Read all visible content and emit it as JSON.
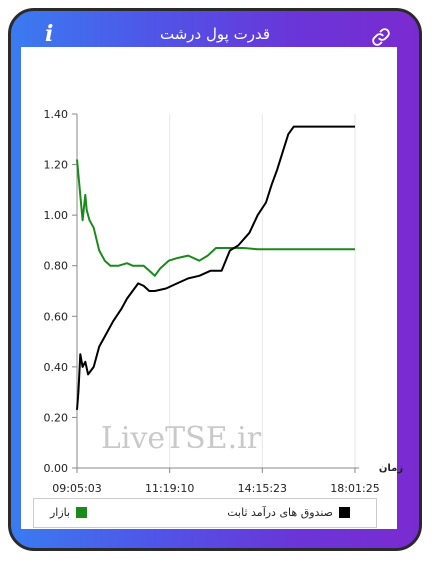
{
  "header": {
    "title": "قدرت پول درشت",
    "info_icon": "i",
    "link_icon": "link-icon"
  },
  "chart_data": {
    "type": "line",
    "xlabel": "زمان",
    "ylim": [
      0,
      1.4
    ],
    "yticks": [
      "0.00",
      "0.20",
      "0.40",
      "0.60",
      "0.80",
      "1.00",
      "1.20",
      "1.40"
    ],
    "xticks": [
      "09:05:03",
      "11:19:10",
      "14:15:23",
      "18:01:25"
    ],
    "watermark": "LiveTSE.ir",
    "grid": "vertical",
    "legend_position": "bottom",
    "colors": {
      "market": "#1a8a1a",
      "funds": "#000000"
    },
    "series": [
      {
        "name": "بازار",
        "color": "#1a8a1a",
        "points": [
          [
            0,
            1.22
          ],
          [
            0.01,
            1.1
          ],
          [
            0.02,
            0.98
          ],
          [
            0.03,
            1.08
          ],
          [
            0.035,
            1.02
          ],
          [
            0.045,
            0.98
          ],
          [
            0.06,
            0.95
          ],
          [
            0.08,
            0.86
          ],
          [
            0.1,
            0.82
          ],
          [
            0.12,
            0.8
          ],
          [
            0.15,
            0.8
          ],
          [
            0.18,
            0.81
          ],
          [
            0.2,
            0.8
          ],
          [
            0.24,
            0.8
          ],
          [
            0.26,
            0.78
          ],
          [
            0.28,
            0.76
          ],
          [
            0.3,
            0.79
          ],
          [
            0.33,
            0.82
          ],
          [
            0.36,
            0.83
          ],
          [
            0.4,
            0.84
          ],
          [
            0.44,
            0.82
          ],
          [
            0.47,
            0.84
          ],
          [
            0.5,
            0.87
          ],
          [
            0.55,
            0.87
          ],
          [
            0.6,
            0.87
          ],
          [
            0.65,
            0.865
          ],
          [
            0.7,
            0.865
          ],
          [
            0.75,
            0.865
          ],
          [
            0.8,
            0.865
          ],
          [
            0.85,
            0.865
          ],
          [
            0.9,
            0.865
          ],
          [
            0.95,
            0.865
          ],
          [
            1,
            0.865
          ]
        ]
      },
      {
        "name": "صندوق های درآمد ثابت",
        "color": "#000000",
        "points": [
          [
            0,
            0.23
          ],
          [
            0.005,
            0.3
          ],
          [
            0.012,
            0.45
          ],
          [
            0.02,
            0.4
          ],
          [
            0.03,
            0.42
          ],
          [
            0.04,
            0.37
          ],
          [
            0.06,
            0.4
          ],
          [
            0.08,
            0.48
          ],
          [
            0.1,
            0.52
          ],
          [
            0.13,
            0.58
          ],
          [
            0.16,
            0.63
          ],
          [
            0.18,
            0.67
          ],
          [
            0.2,
            0.7
          ],
          [
            0.22,
            0.73
          ],
          [
            0.24,
            0.72
          ],
          [
            0.26,
            0.7
          ],
          [
            0.28,
            0.7
          ],
          [
            0.32,
            0.71
          ],
          [
            0.36,
            0.73
          ],
          [
            0.4,
            0.75
          ],
          [
            0.44,
            0.76
          ],
          [
            0.48,
            0.78
          ],
          [
            0.52,
            0.78
          ],
          [
            0.55,
            0.86
          ],
          [
            0.58,
            0.88
          ],
          [
            0.62,
            0.93
          ],
          [
            0.65,
            1.0
          ],
          [
            0.68,
            1.05
          ],
          [
            0.7,
            1.12
          ],
          [
            0.72,
            1.18
          ],
          [
            0.74,
            1.25
          ],
          [
            0.76,
            1.32
          ],
          [
            0.78,
            1.35
          ],
          [
            0.85,
            1.35
          ],
          [
            0.9,
            1.35
          ],
          [
            1,
            1.35
          ]
        ]
      }
    ]
  }
}
